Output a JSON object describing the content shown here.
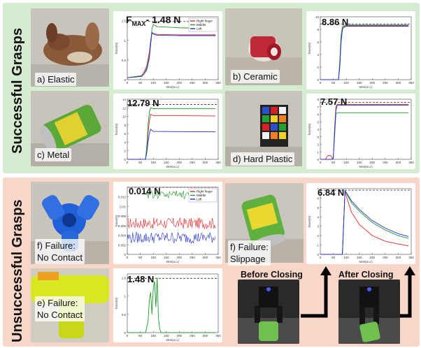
{
  "sections": {
    "success_title": "Successful Grasps",
    "failure_title": "Unsuccessful Grasps"
  },
  "legend": [
    "Right finger",
    "Middle",
    "Left"
  ],
  "colors": {
    "right": "#e8282a",
    "middle": "#1e9a2a",
    "left": "#2030d8",
    "threshold": "#333333"
  },
  "axis_text": {
    "x_label": "time(a.u.)",
    "y_label": "force(N)"
  },
  "captions": {
    "a": "a) Elastic",
    "b": "b) Ceramic",
    "c": "c) Metal",
    "d": "d) Hard Plastic",
    "f1_line1": "f) Failure:",
    "f1_line2": "No Contact",
    "f2_line1": "f) Failure:",
    "f2_line2": "Slippage",
    "e_line1": "e) Failure:",
    "e_line2": "No Contact"
  },
  "labels": {
    "fmax_prefix": "F",
    "fmax_sub": "MAX",
    "fmax_value": "- 1.48 N",
    "b_value": "8.86 N",
    "c_value": "12.79 N",
    "d_value": "7.57 N",
    "f1_value": "0.014 N",
    "e_value": "1.48 N",
    "f2_value": "6.84 N",
    "before_closing": "Before Closing",
    "after_closing": "After Closing"
  },
  "chart_data": [
    {
      "id": "a",
      "type": "line",
      "xlim": [
        0,
        350
      ],
      "ylim": [
        0,
        1.6
      ],
      "yticks": [
        0,
        0.5,
        1.0,
        1.5
      ],
      "threshold": 1.48,
      "series": [
        {
          "name": "Right finger",
          "x": [
            0,
            55,
            65,
            75,
            85,
            90,
            95,
            100,
            115,
            200,
            340
          ],
          "y": [
            0.05,
            0.1,
            0.2,
            0.35,
            0.7,
            1.0,
            1.2,
            1.18,
            1.15,
            1.14,
            1.14
          ]
        },
        {
          "name": "Middle",
          "x": [
            0,
            55,
            65,
            75,
            85,
            90,
            95,
            100,
            115,
            200,
            340
          ],
          "y": [
            0.05,
            0.1,
            0.15,
            0.3,
            0.6,
            0.9,
            1.3,
            1.4,
            1.35,
            1.32,
            1.3
          ]
        },
        {
          "name": "Left",
          "x": [
            0,
            55,
            65,
            75,
            85,
            90,
            95,
            100,
            115,
            200,
            340
          ],
          "y": [
            0.05,
            0.08,
            0.15,
            0.25,
            0.55,
            0.9,
            1.2,
            1.16,
            1.13,
            1.12,
            1.12
          ]
        }
      ]
    },
    {
      "id": "b",
      "type": "line",
      "xlim": [
        0,
        350
      ],
      "ylim": [
        0,
        10
      ],
      "yticks": [
        0,
        2,
        4,
        6,
        8,
        10
      ],
      "threshold": 8.86,
      "series": [
        {
          "name": "Right finger",
          "x": [
            0,
            70,
            75,
            80,
            85,
            90,
            100,
            340
          ],
          "y": [
            0,
            0,
            2,
            6,
            8,
            8.4,
            8.6,
            8.6
          ]
        },
        {
          "name": "Middle",
          "x": [
            0,
            70,
            75,
            80,
            85,
            90,
            100,
            340
          ],
          "y": [
            0,
            0,
            3,
            7,
            8.4,
            8.6,
            8.7,
            8.7
          ]
        },
        {
          "name": "Left",
          "x": [
            0,
            70,
            75,
            80,
            85,
            90,
            100,
            340
          ],
          "y": [
            0,
            0,
            2,
            6,
            8,
            8.3,
            8.5,
            8.5
          ]
        }
      ]
    },
    {
      "id": "c",
      "type": "line",
      "xlim": [
        0,
        350
      ],
      "ylim": [
        0,
        14
      ],
      "yticks": [
        0,
        2,
        4,
        6,
        8,
        10,
        12,
        14
      ],
      "threshold": 12.79,
      "series": [
        {
          "name": "Right finger",
          "x": [
            0,
            70,
            75,
            80,
            85,
            90,
            100,
            340
          ],
          "y": [
            0,
            0,
            2,
            6,
            9,
            10.5,
            10.2,
            10.1
          ]
        },
        {
          "name": "Middle",
          "x": [
            0,
            70,
            75,
            80,
            85,
            90,
            100,
            340
          ],
          "y": [
            0,
            0,
            3,
            8,
            11,
            12,
            11.8,
            11.8
          ]
        },
        {
          "name": "Left",
          "x": [
            0,
            70,
            75,
            80,
            85,
            90,
            100,
            340
          ],
          "y": [
            0,
            0,
            1.5,
            4,
            6,
            7,
            6.5,
            6.4
          ]
        }
      ]
    },
    {
      "id": "d",
      "type": "line",
      "xlim": [
        0,
        350
      ],
      "ylim": [
        0,
        8
      ],
      "yticks": [
        0,
        1,
        2,
        3,
        4,
        5,
        6,
        7,
        8
      ],
      "threshold": 7.57,
      "series": [
        {
          "name": "Right finger",
          "x": [
            0,
            20,
            25,
            30,
            40,
            45,
            50,
            55,
            60,
            65,
            340
          ],
          "y": [
            0,
            0,
            0.3,
            0.5,
            0.5,
            0.2,
            0.1,
            4,
            7,
            7.3,
            7.3
          ]
        },
        {
          "name": "Middle",
          "x": [
            0,
            45,
            50,
            55,
            60,
            65,
            340
          ],
          "y": [
            0,
            0,
            0.2,
            3,
            6,
            6.2,
            6.2
          ]
        },
        {
          "name": "Left",
          "x": [
            0,
            45,
            50,
            55,
            60,
            65,
            340
          ],
          "y": [
            0,
            0,
            0.2,
            3.5,
            6.5,
            7.2,
            7.2
          ]
        }
      ]
    },
    {
      "id": "f1",
      "type": "line",
      "xlim": [
        0,
        350
      ],
      "ylim": [
        0,
        0.014
      ],
      "yticks": [
        0,
        0.002,
        0.004,
        0.006,
        0.008,
        0.01,
        0.012
      ],
      "threshold": 0.014,
      "series": [
        {
          "name": "Right finger",
          "x": [
            0,
            340
          ],
          "y": [
            0.0065,
            0.0065
          ]
        },
        {
          "name": "Middle",
          "x": [
            0,
            340
          ],
          "y": [
            0.0125,
            0.0125
          ]
        },
        {
          "name": "Left",
          "x": [
            0,
            340
          ],
          "y": [
            0.0035,
            0.0035
          ]
        }
      ]
    },
    {
      "id": "e",
      "type": "line",
      "xlim": [
        0,
        350
      ],
      "ylim": [
        0,
        1.6
      ],
      "yticks": [
        0,
        0.5,
        1.0,
        1.5
      ],
      "threshold": 1.48,
      "series": [
        {
          "name": "Middle",
          "x": [
            0,
            70,
            80,
            85,
            90,
            95,
            100,
            105,
            110,
            115,
            120,
            125,
            130,
            140,
            340
          ],
          "y": [
            0,
            0,
            0.3,
            0.9,
            1.1,
            0.5,
            1.2,
            1.4,
            0.7,
            1.5,
            0.4,
            0.1,
            0,
            0,
            0
          ]
        }
      ]
    },
    {
      "id": "f2",
      "type": "line",
      "xlim": [
        0,
        350
      ],
      "ylim": [
        0,
        7
      ],
      "yticks": [
        0,
        1,
        2,
        3,
        4,
        5,
        6,
        7
      ],
      "threshold": 6.84,
      "series": [
        {
          "name": "Right finger",
          "x": [
            0,
            85,
            95,
            100,
            120,
            150,
            200,
            250,
            300,
            340
          ],
          "y": [
            0,
            0,
            6.6,
            6.2,
            4.5,
            3.2,
            2.0,
            1.4,
            1.1,
            0.9
          ]
        },
        {
          "name": "Middle",
          "x": [
            0,
            85,
            95,
            100,
            120,
            150,
            200,
            250,
            300,
            340
          ],
          "y": [
            0,
            0,
            6.7,
            6.5,
            5.5,
            4.6,
            3.4,
            2.6,
            2.0,
            1.7
          ]
        },
        {
          "name": "Left",
          "x": [
            0,
            85,
            95,
            100,
            120,
            150,
            200,
            250,
            300,
            340
          ],
          "y": [
            0,
            0,
            6.8,
            6.6,
            5.7,
            4.8,
            3.6,
            2.8,
            2.2,
            1.9
          ]
        }
      ]
    }
  ]
}
